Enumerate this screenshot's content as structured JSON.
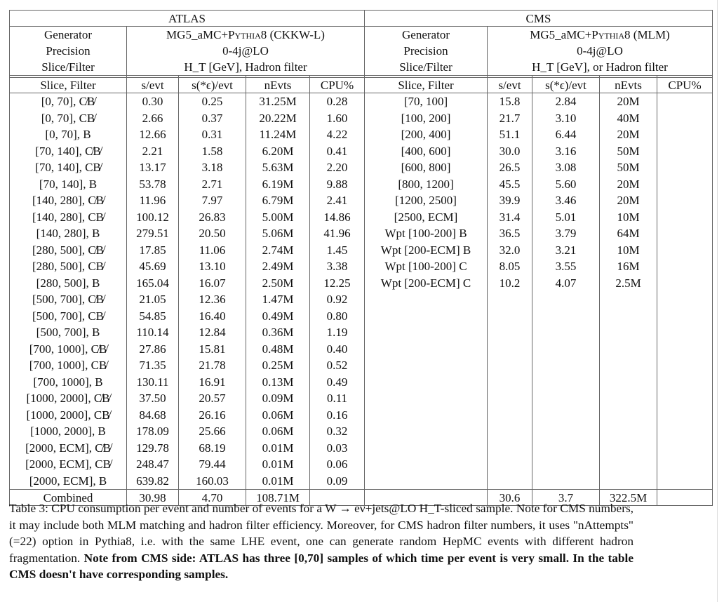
{
  "table": {
    "atlas": {
      "title": "ATLAS",
      "meta": [
        {
          "label": "Generator",
          "value_main": "MG5_aMC+",
          "value_sc": "Pythia8",
          "value_tail": " (CKKW-L)"
        },
        {
          "label": "Precision",
          "value": "0-4j@LO"
        },
        {
          "label": "Slice/Filter",
          "value": "H_T [GeV], Hadron filter"
        }
      ],
      "columns": [
        "Slice, Filter",
        "s/evt",
        "s(*ϵ)/evt",
        "nEvts",
        "CPU%"
      ],
      "rows": [
        [
          "[0, 70], C̸B̸",
          "0.30",
          "0.25",
          "31.25M",
          "0.28"
        ],
        [
          "[0, 70], CB̸",
          "2.66",
          "0.37",
          "20.22M",
          "1.60"
        ],
        [
          "[0, 70], B",
          "12.66",
          "0.31",
          "11.24M",
          "4.22"
        ],
        [
          "[70, 140], C̸B̸",
          "2.21",
          "1.58",
          "6.20M",
          "0.41"
        ],
        [
          "[70, 140], CB̸",
          "13.17",
          "3.18",
          "5.63M",
          "2.20"
        ],
        [
          "[70, 140], B",
          "53.78",
          "2.71",
          "6.19M",
          "9.88"
        ],
        [
          "[140, 280], C̸B̸",
          "11.96",
          "7.97",
          "6.79M",
          "2.41"
        ],
        [
          "[140, 280], CB̸",
          "100.12",
          "26.83",
          "5.00M",
          "14.86"
        ],
        [
          "[140, 280], B",
          "279.51",
          "20.50",
          "5.06M",
          "41.96"
        ],
        [
          "[280, 500], C̸B̸",
          "17.85",
          "11.06",
          "2.74M",
          "1.45"
        ],
        [
          "[280, 500], CB̸",
          "45.69",
          "13.10",
          "2.49M",
          "3.38"
        ],
        [
          "[280, 500], B",
          "165.04",
          "16.07",
          "2.50M",
          "12.25"
        ],
        [
          "[500, 700], C̸B̸",
          "21.05",
          "12.36",
          "1.47M",
          "0.92"
        ],
        [
          "[500, 700], CB̸",
          "54.85",
          "16.40",
          "0.49M",
          "0.80"
        ],
        [
          "[500, 700], B",
          "110.14",
          "12.84",
          "0.36M",
          "1.19"
        ],
        [
          "[700, 1000], C̸B̸",
          "27.86",
          "15.81",
          "0.48M",
          "0.40"
        ],
        [
          "[700, 1000], CB̸",
          "71.35",
          "21.78",
          "0.25M",
          "0.52"
        ],
        [
          "[700, 1000], B",
          "130.11",
          "16.91",
          "0.13M",
          "0.49"
        ],
        [
          "[1000, 2000], C̸B̸",
          "37.50",
          "20.57",
          "0.09M",
          "0.11"
        ],
        [
          "[1000, 2000], CB̸",
          "84.68",
          "26.16",
          "0.06M",
          "0.16"
        ],
        [
          "[1000, 2000], B",
          "178.09",
          "25.66",
          "0.06M",
          "0.32"
        ],
        [
          "[2000, ECM], C̸B̸",
          "129.78",
          "68.19",
          "0.01M",
          "0.03"
        ],
        [
          "[2000, ECM], CB̸",
          "248.47",
          "79.44",
          "0.01M",
          "0.06"
        ],
        [
          "[2000, ECM], B",
          "639.82",
          "160.03",
          "0.01M",
          "0.09"
        ]
      ],
      "combined": [
        "Combined",
        "30.98",
        "4.70",
        "108.71M",
        ""
      ]
    },
    "cms": {
      "title": "CMS",
      "meta": [
        {
          "label": "Generator",
          "value_main": "MG5_aMC+",
          "value_sc": "Pythia8",
          "value_tail": " (MLM)"
        },
        {
          "label": "Precision",
          "value": "0-4j@LO"
        },
        {
          "label": "Slice/Filter",
          "value": "H_T [GeV], or Hadron filter"
        }
      ],
      "columns": [
        "Slice, Filter",
        "s/evt",
        "s(*ϵ)/evt",
        "nEvts",
        "CPU%"
      ],
      "rows": [
        [
          "[70, 100]",
          "15.8",
          "2.84",
          "20M",
          ""
        ],
        [
          "[100, 200]",
          "21.7",
          "3.10",
          "40M",
          ""
        ],
        [
          "[200, 400]",
          "51.1",
          "6.44",
          "20M",
          ""
        ],
        [
          "[400, 600]",
          "30.0",
          "3.16",
          "50M",
          ""
        ],
        [
          "[600, 800]",
          "26.5",
          "3.08",
          "50M",
          ""
        ],
        [
          "[800, 1200]",
          "45.5",
          "5.60",
          "20M",
          ""
        ],
        [
          "[1200, 2500]",
          "39.9",
          "3.46",
          "20M",
          ""
        ],
        [
          "[2500, ECM]",
          "31.4",
          "5.01",
          "10M",
          ""
        ],
        [
          "Wpt [100-200] B",
          "36.5",
          "3.79",
          "64M",
          ""
        ],
        [
          "Wpt [200-ECM] B",
          "32.0",
          "3.21",
          "10M",
          ""
        ],
        [
          "Wpt [100-200] C",
          "8.05",
          "3.55",
          "16M",
          ""
        ],
        [
          "Wpt [200-ECM] C",
          "10.2",
          "4.07",
          "2.5M",
          ""
        ]
      ],
      "combined": [
        "",
        "30.6",
        "3.7",
        "322.5M",
        ""
      ]
    }
  },
  "caption": {
    "normal": "Table 3:   CPU consumption per event and number of events for a W → eν+jets@LO H_T-sliced sample. Note for CMS numbers, it may include both MLM matching and hadron filter efficiency. Moreover, for CMS hadron filter numbers, it uses \"nAttempts\"(=22) option in Pythia8, i.e. with the same LHE event, one can generate random HepMC events with different hadron fragmentation. ",
    "bold": "Note from CMS side: ATLAS has three [0,70] samples of which time per event is very small. In the table CMS doesn't have corresponding samples."
  }
}
